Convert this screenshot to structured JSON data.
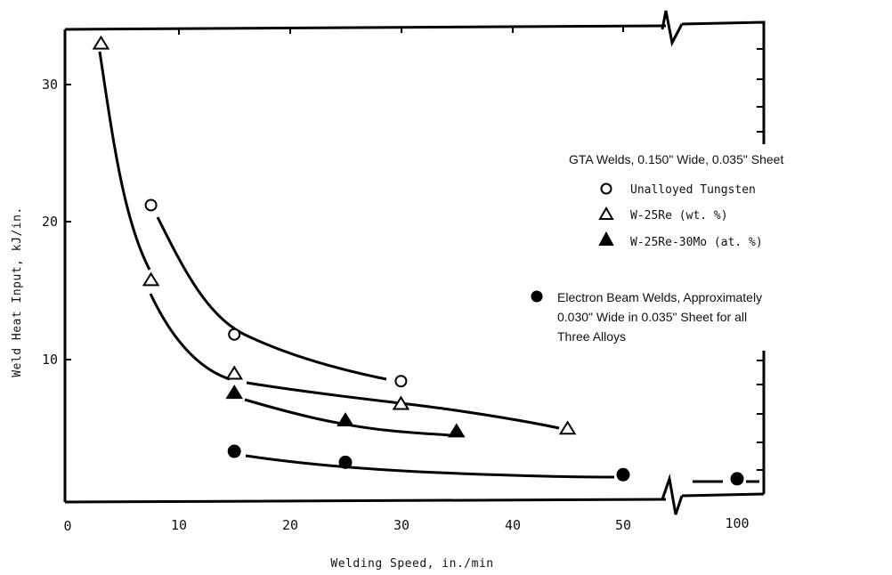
{
  "chart_data": {
    "type": "scatter",
    "xlabel": "Welding Speed, in./min",
    "ylabel": "Weld Heat Input, kJ/in.",
    "x_ticks": [
      "0",
      "10",
      "20",
      "30",
      "40",
      "50",
      "100"
    ],
    "y_ticks": [
      "10",
      "20",
      "30"
    ],
    "xlim": [
      0,
      100
    ],
    "ylim": [
      0,
      34
    ],
    "x_axis_break": "between 50 and 100",
    "grid": false,
    "legend_placement": "right",
    "legend": {
      "gta_heading": "GTA Welds, 0.150\" Wide, 0.035\" Sheet",
      "eb_lines": [
        "Electron Beam Welds, Approximately",
        "0.030\" Wide in 0.035\" Sheet for all",
        "Three Alloys"
      ]
    },
    "series": [
      {
        "name": "Unalloyed Tungsten",
        "marker": "open-circle",
        "points": [
          [
            7.5,
            21.2
          ],
          [
            15,
            11.8
          ],
          [
            30,
            8.4
          ]
        ]
      },
      {
        "name": "W-25Re (wt. %)",
        "marker": "open-triangle",
        "points": [
          [
            3,
            33
          ],
          [
            7.5,
            15.8
          ],
          [
            15,
            9.0
          ],
          [
            30,
            6.8
          ],
          [
            45,
            5.0
          ]
        ]
      },
      {
        "name": "W-25Re-30Mo (at. %)",
        "marker": "filled-triangle",
        "points": [
          [
            15,
            7.6
          ],
          [
            25,
            5.6
          ],
          [
            35,
            4.8
          ]
        ]
      },
      {
        "name": "Electron Beam Welds, Approximately 0.030\" Wide in 0.035\" Sheet for all Three Alloys",
        "marker": "filled-circle",
        "points": [
          [
            15,
            3.3
          ],
          [
            25,
            2.5
          ],
          [
            50,
            1.6
          ],
          [
            100,
            1.3
          ]
        ]
      }
    ]
  }
}
